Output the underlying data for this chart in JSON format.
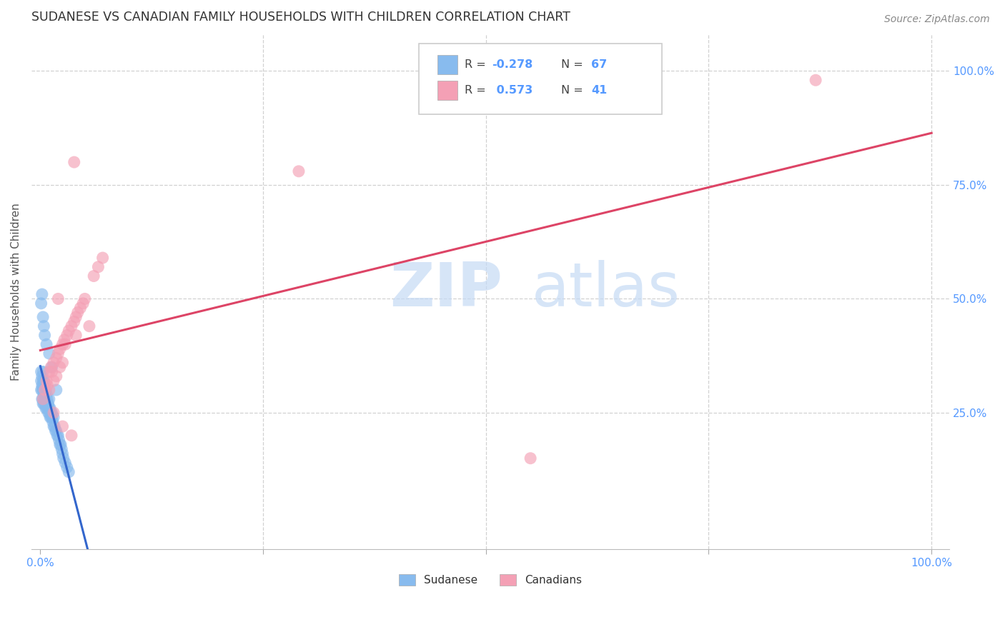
{
  "title": "SUDANESE VS CANADIAN FAMILY HOUSEHOLDS WITH CHILDREN CORRELATION CHART",
  "source": "Source: ZipAtlas.com",
  "tick_color": "#5599ff",
  "ylabel": "Family Households with Children",
  "legend_blue_label": "Sudanese",
  "legend_pink_label": "Canadians",
  "R_blue": -0.278,
  "N_blue": 67,
  "R_pink": 0.573,
  "N_pink": 41,
  "blue_color": "#88bbee",
  "pink_color": "#f4a0b5",
  "blue_line_color": "#3366cc",
  "pink_line_color": "#dd4466",
  "watermark_zip": "ZIP",
  "watermark_atlas": "atlas",
  "blue_scatter_x": [
    0.001,
    0.001,
    0.001,
    0.002,
    0.002,
    0.002,
    0.002,
    0.003,
    0.003,
    0.003,
    0.003,
    0.003,
    0.003,
    0.004,
    0.004,
    0.004,
    0.004,
    0.005,
    0.005,
    0.005,
    0.005,
    0.006,
    0.006,
    0.006,
    0.007,
    0.007,
    0.007,
    0.008,
    0.008,
    0.008,
    0.009,
    0.009,
    0.01,
    0.01,
    0.01,
    0.011,
    0.011,
    0.012,
    0.012,
    0.013,
    0.013,
    0.014,
    0.015,
    0.015,
    0.016,
    0.017,
    0.018,
    0.019,
    0.02,
    0.021,
    0.022,
    0.023,
    0.024,
    0.025,
    0.026,
    0.028,
    0.03,
    0.032,
    0.001,
    0.002,
    0.003,
    0.004,
    0.005,
    0.007,
    0.01,
    0.013,
    0.018
  ],
  "blue_scatter_y": [
    0.3,
    0.32,
    0.34,
    0.28,
    0.3,
    0.31,
    0.33,
    0.27,
    0.28,
    0.3,
    0.31,
    0.32,
    0.34,
    0.27,
    0.29,
    0.3,
    0.32,
    0.27,
    0.28,
    0.29,
    0.31,
    0.26,
    0.28,
    0.3,
    0.26,
    0.27,
    0.29,
    0.26,
    0.27,
    0.28,
    0.25,
    0.27,
    0.25,
    0.26,
    0.28,
    0.24,
    0.26,
    0.24,
    0.25,
    0.24,
    0.25,
    0.23,
    0.22,
    0.24,
    0.22,
    0.21,
    0.21,
    0.2,
    0.2,
    0.19,
    0.18,
    0.18,
    0.17,
    0.16,
    0.15,
    0.14,
    0.13,
    0.12,
    0.49,
    0.51,
    0.46,
    0.44,
    0.42,
    0.4,
    0.38,
    0.35,
    0.3
  ],
  "pink_scatter_x": [
    0.003,
    0.005,
    0.007,
    0.008,
    0.01,
    0.01,
    0.012,
    0.013,
    0.015,
    0.015,
    0.018,
    0.018,
    0.02,
    0.022,
    0.022,
    0.025,
    0.025,
    0.027,
    0.028,
    0.03,
    0.032,
    0.035,
    0.038,
    0.04,
    0.04,
    0.042,
    0.045,
    0.048,
    0.05,
    0.06,
    0.065,
    0.07,
    0.038,
    0.02,
    0.055,
    0.015,
    0.025,
    0.035,
    0.29,
    0.55,
    0.87
  ],
  "pink_scatter_y": [
    0.28,
    0.3,
    0.32,
    0.31,
    0.34,
    0.3,
    0.35,
    0.34,
    0.36,
    0.32,
    0.37,
    0.33,
    0.38,
    0.39,
    0.35,
    0.4,
    0.36,
    0.41,
    0.4,
    0.42,
    0.43,
    0.44,
    0.45,
    0.46,
    0.42,
    0.47,
    0.48,
    0.49,
    0.5,
    0.55,
    0.57,
    0.59,
    0.8,
    0.5,
    0.44,
    0.25,
    0.22,
    0.2,
    0.78,
    0.15,
    0.98
  ],
  "xlim": [
    0.0,
    1.0
  ],
  "ylim": [
    0.0,
    1.05
  ]
}
